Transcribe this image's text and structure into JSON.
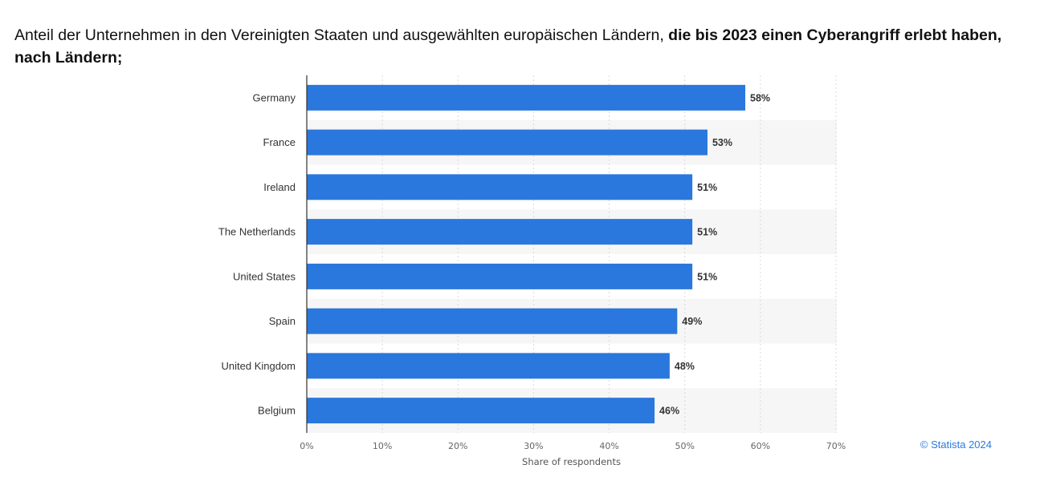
{
  "title": {
    "regular": "Anteil der Unternehmen in den Vereinigten Staaten und ausgewählten europäischen Ländern,",
    "bold": "die bis 2023 einen Cyberangriff erlebt haben, nach Ländern;"
  },
  "credit": "© Statista 2024",
  "colors": {
    "bar": "#2a77dd",
    "band": "#f6f6f6",
    "grid": "#d9d9d9",
    "axis": "#333333"
  },
  "chart_data": {
    "type": "bar",
    "orientation": "horizontal",
    "categories": [
      "Germany",
      "France",
      "Ireland",
      "The Netherlands",
      "United States",
      "Spain",
      "United Kingdom",
      "Belgium"
    ],
    "values": [
      58,
      53,
      51,
      51,
      51,
      49,
      48,
      46
    ],
    "value_labels": [
      "58%",
      "53%",
      "51%",
      "51%",
      "51%",
      "49%",
      "48%",
      "46%"
    ],
    "xlabel": "Share of respondents",
    "ylabel": "",
    "xlim": [
      0,
      70
    ],
    "xticks": [
      0,
      10,
      20,
      30,
      40,
      50,
      60,
      70
    ],
    "xtick_labels": [
      "0%",
      "10%",
      "20%",
      "30%",
      "40%",
      "50%",
      "60%",
      "70%"
    ],
    "grid": true,
    "grid_style": "dotted-vertical",
    "alternating_row_bands": true
  }
}
